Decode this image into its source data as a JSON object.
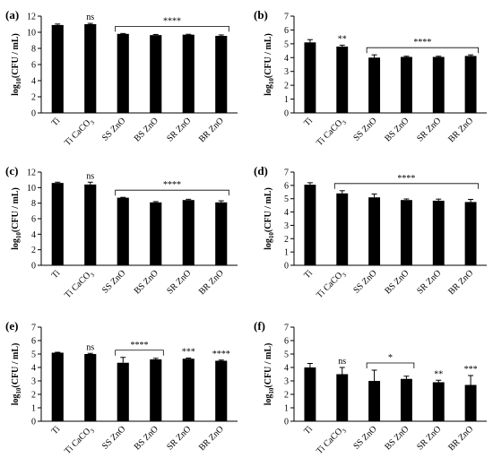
{
  "chart_data": [
    {
      "panel": "(a)",
      "type": "bar",
      "ylabel": "log10(CFU / mL)",
      "ylim": [
        0,
        12
      ],
      "yticks": [
        0,
        2,
        4,
        6,
        8,
        10,
        12
      ],
      "categories": [
        "Ti",
        "Ti CaCO3",
        "SS ZnO",
        "BS ZnO",
        "SR ZnO",
        "BR ZnO"
      ],
      "values": [
        10.9,
        11.0,
        9.8,
        9.65,
        9.7,
        9.55
      ],
      "errors": [
        0.12,
        0.1,
        0.05,
        0.08,
        0.05,
        0.12
      ],
      "annotations": [
        {
          "category": "Ti CaCO3",
          "text": "ns"
        },
        {
          "from": "SS ZnO",
          "to": "BR ZnO",
          "text": "****",
          "bracket": true
        }
      ]
    },
    {
      "panel": "(b)",
      "type": "bar",
      "ylabel": "log10(CFU / mL)",
      "ylim": [
        0,
        7
      ],
      "yticks": [
        0,
        1,
        2,
        3,
        4,
        5,
        6,
        7
      ],
      "categories": [
        "Ti",
        "Ti CaCO3",
        "SS ZnO",
        "BS ZnO",
        "SR ZnO",
        "BR ZnO"
      ],
      "values": [
        5.1,
        4.8,
        4.0,
        4.05,
        4.05,
        4.12
      ],
      "errors": [
        0.2,
        0.1,
        0.2,
        0.05,
        0.05,
        0.08
      ],
      "annotations": [
        {
          "category": "Ti CaCO3",
          "text": "**"
        },
        {
          "from": "SS ZnO",
          "to": "BR ZnO",
          "text": "****",
          "bracket": true
        }
      ]
    },
    {
      "panel": "(c)",
      "type": "bar",
      "ylabel": "log10(CFU / mL)",
      "ylim": [
        0,
        12
      ],
      "yticks": [
        0,
        2,
        4,
        6,
        8,
        10,
        12
      ],
      "categories": [
        "Ti",
        "Ti CaCO3",
        "SS ZnO",
        "BS ZnO",
        "SR ZnO",
        "BR ZnO"
      ],
      "values": [
        10.6,
        10.4,
        8.7,
        8.1,
        8.4,
        8.1
      ],
      "errors": [
        0.1,
        0.3,
        0.05,
        0.1,
        0.1,
        0.2
      ],
      "annotations": [
        {
          "category": "Ti CaCO3",
          "text": "ns"
        },
        {
          "from": "SS ZnO",
          "to": "BR ZnO",
          "text": "****",
          "bracket": true
        }
      ]
    },
    {
      "panel": "(d)",
      "type": "bar",
      "ylabel": "log10(CFU / mL)",
      "ylim": [
        0,
        7
      ],
      "yticks": [
        0,
        1,
        2,
        3,
        4,
        5,
        6,
        7
      ],
      "categories": [
        "Ti",
        "Ti CaCO3",
        "SS ZnO",
        "BS ZnO",
        "SR ZnO",
        "BR ZnO"
      ],
      "values": [
        6.05,
        5.4,
        5.1,
        4.9,
        4.85,
        4.75
      ],
      "errors": [
        0.15,
        0.2,
        0.25,
        0.08,
        0.12,
        0.2
      ],
      "annotations": [
        {
          "from": "Ti CaCO3",
          "to": "BR ZnO",
          "text": "****",
          "bracket": true
        }
      ]
    },
    {
      "panel": "(e)",
      "type": "bar",
      "ylabel": "log10(CFU / mL)",
      "ylim": [
        0,
        7
      ],
      "yticks": [
        0,
        1,
        2,
        3,
        4,
        5,
        6,
        7
      ],
      "categories": [
        "Ti",
        "Ti CaCO3",
        "SS ZnO",
        "BS ZnO",
        "SR ZnO",
        "BR ZnO"
      ],
      "values": [
        5.1,
        5.0,
        4.35,
        4.6,
        4.65,
        4.5
      ],
      "errors": [
        0.03,
        0.05,
        0.4,
        0.08,
        0.05,
        0.05
      ],
      "annotations": [
        {
          "category": "Ti CaCO3",
          "text": "ns"
        },
        {
          "from": "SS ZnO",
          "to": "BS ZnO",
          "text": "****",
          "bracket": true
        },
        {
          "category": "SR ZnO",
          "text": "***"
        },
        {
          "category": "BR ZnO",
          "text": "****"
        }
      ]
    },
    {
      "panel": "(f)",
      "type": "bar",
      "ylabel": "log10(CFU / mL)",
      "ylim": [
        0,
        7
      ],
      "yticks": [
        0,
        1,
        2,
        3,
        4,
        5,
        6,
        7
      ],
      "categories": [
        "Ti",
        "Ti CaCO3",
        "SS ZnO",
        "BS ZnO",
        "SR ZnO",
        "BR ZnO"
      ],
      "values": [
        4.0,
        3.5,
        3.0,
        3.15,
        2.9,
        2.7
      ],
      "errors": [
        0.3,
        0.5,
        0.8,
        0.2,
        0.15,
        0.7
      ],
      "annotations": [
        {
          "category": "Ti CaCO3",
          "text": "ns"
        },
        {
          "from": "SS ZnO",
          "to": "BS ZnO",
          "text": "*",
          "bracket": true
        },
        {
          "category": "SR ZnO",
          "text": "**"
        },
        {
          "category": "BR ZnO",
          "text": "***"
        }
      ]
    }
  ]
}
